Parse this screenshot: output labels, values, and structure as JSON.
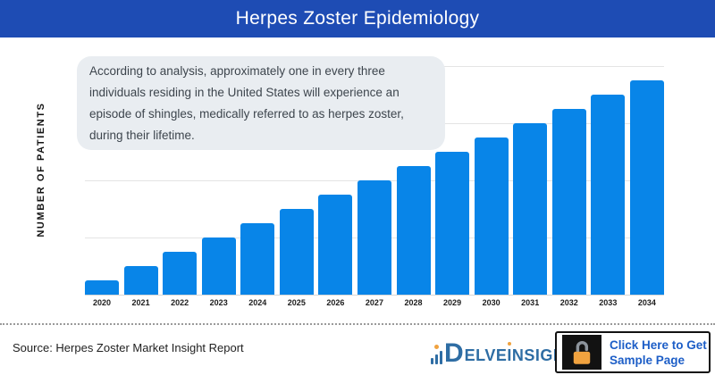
{
  "header": {
    "title": "Herpes Zoster Epidemiology"
  },
  "annotation": {
    "text": "According to analysis, approximately one in every three individuals residing in the United States will experience an episode of shingles, medically referred to as herpes zoster, during their lifetime."
  },
  "chart_data": {
    "type": "bar",
    "title": "Herpes Zoster Epidemiology",
    "categories": [
      "2020",
      "2021",
      "2022",
      "2023",
      "2024",
      "2025",
      "2026",
      "2027",
      "2028",
      "2029",
      "2030",
      "2031",
      "2032",
      "2033",
      "2034"
    ],
    "values": [
      1,
      2,
      3,
      4,
      5,
      6,
      7,
      8,
      9,
      10,
      11,
      12,
      13,
      14,
      15
    ],
    "values_unit": "relative units (no numeric y-axis tick labels shown)",
    "xlabel": "",
    "ylabel": "NUMBER OF PATIENTS",
    "ylim": [
      0,
      16
    ],
    "gridline_interval": 4,
    "grid": true,
    "legend": false,
    "bar_color": "#0885e8"
  },
  "footer": {
    "source": "Source: Herpes Zoster Market Insight Report",
    "logo": {
      "icon": "bar-chart-logo-icon",
      "d": "D",
      "pre": "ELVE",
      "i_dotted": "I",
      "post": "NSIGHT"
    },
    "cta": {
      "icon": "open-padlock-icon",
      "line1": "Click Here to Get",
      "line2": "Sample Page"
    }
  },
  "colors": {
    "header-bg": "#1e4cb4",
    "bar-blue": "#0885e8",
    "bubble-bg": "#e9edf1",
    "bubble-text": "#3d454d",
    "grid-line": "#e4e4e4",
    "logo-blue": "#2e6da4",
    "accent-orange": "#f0a23f",
    "cta-blue": "#1d5ec7"
  }
}
